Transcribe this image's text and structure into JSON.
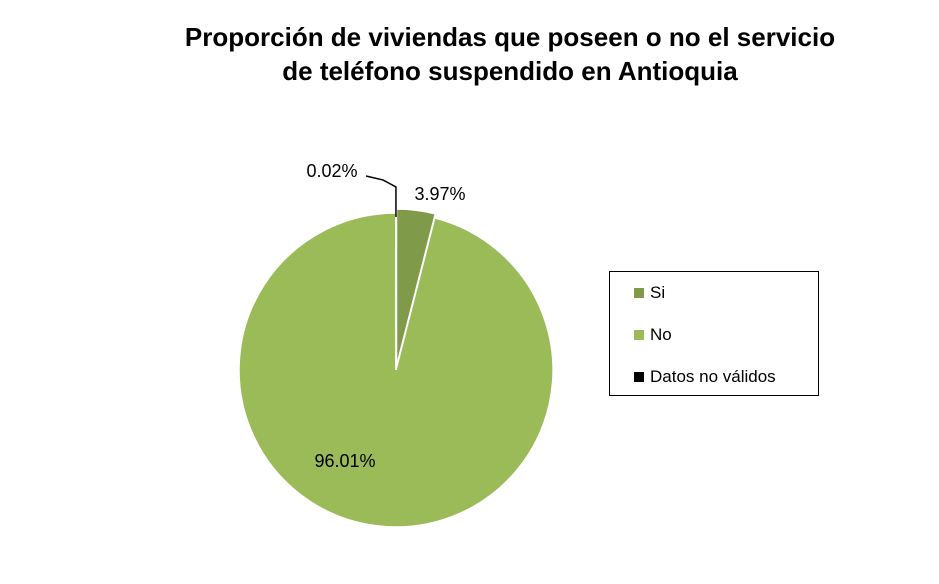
{
  "chart_data": {
    "type": "pie",
    "title_lines": [
      "Proporción de viviendas que poseen o no el servicio",
      "de teléfono suspendido en Antioquia"
    ],
    "slices": [
      {
        "label": "Si",
        "value": 3.97,
        "display": "3.97%",
        "color": "#7f9a48"
      },
      {
        "label": "No",
        "value": 96.01,
        "display": "96.01%",
        "color": "#9bbb59"
      },
      {
        "label": "Datos no válidos",
        "value": 0.02,
        "display": "0.02%",
        "color": "#000000"
      }
    ],
    "legend_position": "right"
  }
}
